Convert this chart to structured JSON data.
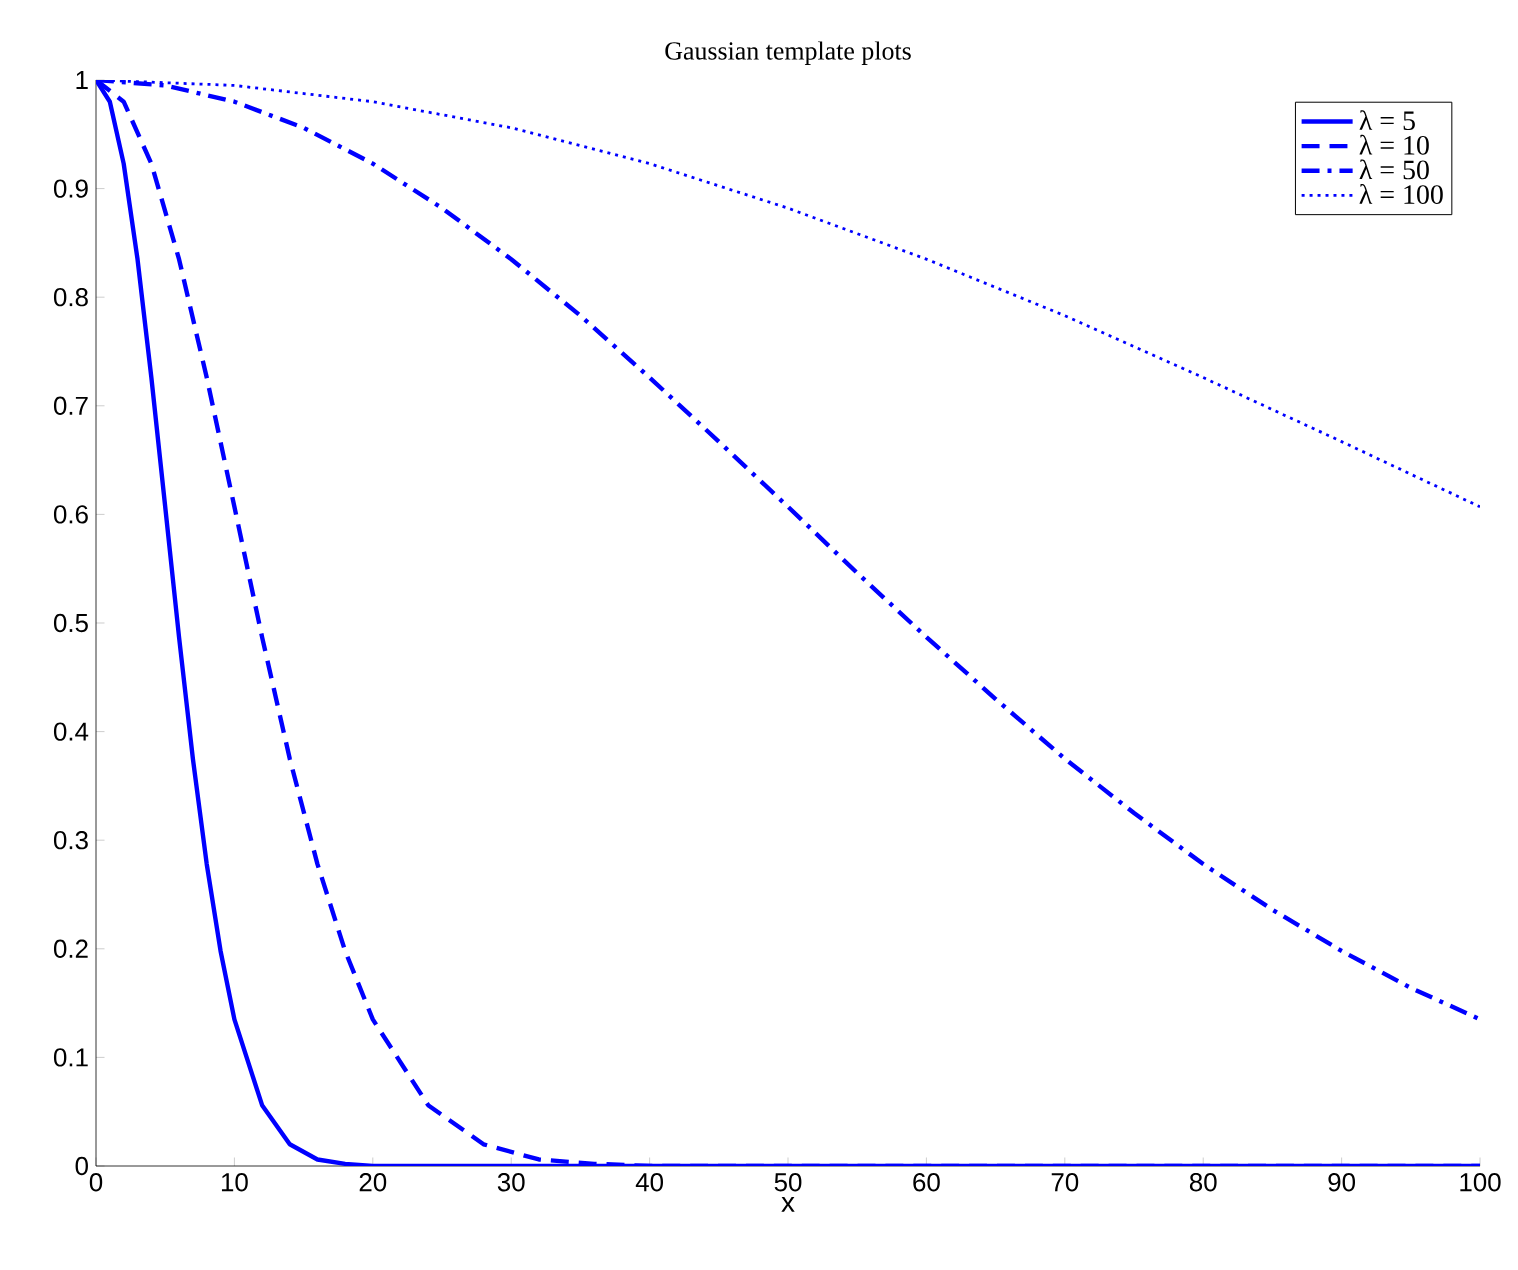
{
  "chart_data": {
    "type": "line",
    "title": "Gaussian template plots",
    "xlabel": "x",
    "xlim": [
      0,
      100
    ],
    "ylim": [
      0,
      1
    ],
    "xticks": [
      0,
      10,
      20,
      30,
      40,
      50,
      60,
      70,
      80,
      90,
      100
    ],
    "yticks": [
      0,
      0.1,
      0.2,
      0.3,
      0.4,
      0.5,
      0.6,
      0.7,
      0.8,
      0.9,
      1
    ],
    "grid": false,
    "legend": "top right",
    "marker": "none",
    "series": [
      {
        "name": "λ = 5",
        "color": "#0000ff",
        "line_style": "solid",
        "x": [
          0,
          1,
          2,
          3,
          4,
          5,
          6,
          7,
          8,
          9,
          10,
          12,
          14,
          16,
          18,
          20,
          25,
          30,
          40,
          60,
          80,
          100
        ],
        "values": [
          1,
          0.98,
          0.923,
          0.835,
          0.726,
          0.607,
          0.487,
          0.375,
          0.278,
          0.198,
          0.135,
          0.056,
          0.02,
          0.006,
          0.002,
          0,
          0,
          0,
          0,
          0,
          0,
          0
        ]
      },
      {
        "name": "λ = 10",
        "color": "#0000ff",
        "line_style": "dashed",
        "x": [
          0,
          2,
          4,
          6,
          8,
          10,
          12,
          14,
          16,
          18,
          20,
          24,
          28,
          32,
          36,
          40,
          60,
          80,
          100
        ],
        "values": [
          1,
          0.98,
          0.923,
          0.835,
          0.726,
          0.607,
          0.487,
          0.375,
          0.278,
          0.198,
          0.135,
          0.056,
          0.02,
          0.006,
          0.002,
          0,
          0,
          0,
          0
        ]
      },
      {
        "name": "λ = 50",
        "color": "#0000ff",
        "line_style": "dashdot",
        "x": [
          0,
          5,
          10,
          15,
          20,
          25,
          30,
          35,
          40,
          45,
          50,
          55,
          60,
          65,
          70,
          75,
          80,
          85,
          90,
          95,
          100
        ],
        "values": [
          1,
          0.995,
          0.98,
          0.956,
          0.923,
          0.882,
          0.835,
          0.783,
          0.726,
          0.667,
          0.607,
          0.546,
          0.487,
          0.43,
          0.375,
          0.325,
          0.278,
          0.236,
          0.198,
          0.164,
          0.135
        ]
      },
      {
        "name": "λ = 100",
        "color": "#0000ff",
        "line_style": "dotted",
        "x": [
          0,
          10,
          20,
          30,
          40,
          50,
          60,
          70,
          80,
          90,
          100
        ],
        "values": [
          1,
          0.995,
          0.98,
          0.956,
          0.923,
          0.882,
          0.835,
          0.783,
          0.726,
          0.667,
          0.607
        ]
      }
    ]
  }
}
